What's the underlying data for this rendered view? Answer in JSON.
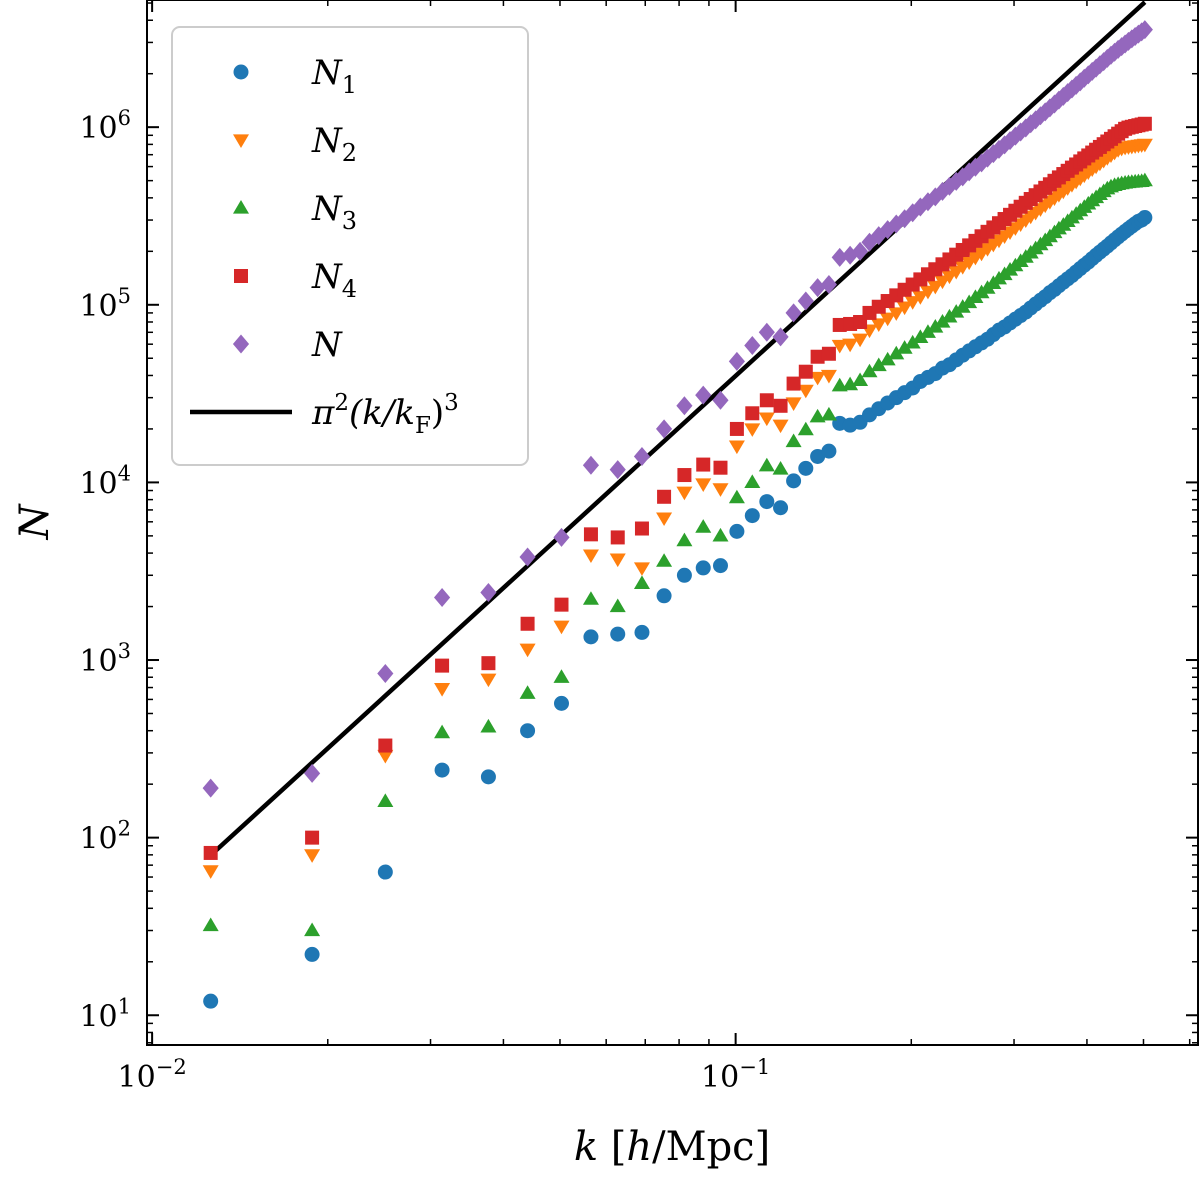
{
  "chart_data": {
    "type": "scatter",
    "title": "",
    "xlabel": "k [h/Mpc]",
    "ylabel": "N",
    "xscale": "log",
    "yscale": "log",
    "xlim": [
      0.0098,
      0.62
    ],
    "ylim": [
      6.8,
      5200000
    ],
    "x_major_ticks": [
      {
        "value": 0.01,
        "base": "10",
        "exp": "−2"
      },
      {
        "value": 0.1,
        "base": "10",
        "exp": "−1"
      }
    ],
    "y_major_ticks": [
      {
        "value": 10,
        "base": "10",
        "exp": "1"
      },
      {
        "value": 100,
        "base": "10",
        "exp": "2"
      },
      {
        "value": 1000,
        "base": "10",
        "exp": "3"
      },
      {
        "value": 10000,
        "base": "10",
        "exp": "4"
      },
      {
        "value": 100000,
        "base": "10",
        "exp": "5"
      },
      {
        "value": 1000000,
        "base": "10",
        "exp": "6"
      }
    ],
    "legend_position": "top-left",
    "x": [
      0.0126,
      0.0188,
      0.0251,
      0.0314,
      0.0377,
      0.044,
      0.0503,
      0.0565,
      0.0628,
      0.0691,
      0.0754,
      0.0817,
      0.088,
      0.0942,
      0.1005,
      0.1068,
      0.1131,
      0.1194,
      0.1257,
      0.1319,
      0.1382,
      0.1445,
      0.1508,
      0.1571,
      0.1634,
      0.1696,
      0.1759,
      0.1822,
      0.1885,
      0.1948,
      0.2011,
      0.2073,
      0.2136,
      0.2199,
      0.2262,
      0.2325,
      0.2388,
      0.245,
      0.2513,
      0.2576,
      0.2639,
      0.2702,
      0.2765,
      0.2827,
      0.289,
      0.2953,
      0.3016,
      0.3079,
      0.3142,
      0.3204,
      0.3267,
      0.333,
      0.3393,
      0.3456,
      0.3519,
      0.3581,
      0.3644,
      0.3707,
      0.377,
      0.3833,
      0.3896,
      0.3958,
      0.4021,
      0.4084,
      0.4147,
      0.421,
      0.4273,
      0.4335,
      0.4398,
      0.4461,
      0.4524,
      0.4587,
      0.465,
      0.4712,
      0.4775,
      0.4838,
      0.4901,
      0.4964,
      0.5027
    ],
    "series": [
      {
        "name": "N1",
        "label_base": "N",
        "label_sub": "1",
        "marker": "circle",
        "color": "#1f77b4",
        "values": [
          12,
          22,
          64,
          240,
          220,
          400,
          570,
          1350,
          1400,
          1430,
          2300,
          3000,
          3300,
          3400,
          5300,
          6500,
          7800,
          7200,
          10200,
          12000,
          14000,
          15000,
          21500,
          21000,
          21800,
          24000,
          26000,
          28000,
          30000,
          32000,
          34000,
          37000,
          39000,
          41000,
          44000,
          46000,
          49000,
          52000,
          55000,
          58000,
          61000,
          64000,
          68000,
          72000,
          75000,
          79000,
          83000,
          87000,
          91000,
          96000,
          101000,
          106000,
          111000,
          117000,
          122000,
          128000,
          134000,
          140000,
          146000,
          153000,
          160000,
          167000,
          174000,
          182000,
          190000,
          198000,
          206000,
          214000,
          223000,
          232000,
          241000,
          250000,
          259000,
          268000,
          277000,
          286000,
          295000,
          300000,
          310000
        ]
      },
      {
        "name": "N2",
        "label_base": "N",
        "label_sub": "2",
        "marker": "triangle-down",
        "color": "#ff7f0e",
        "values": [
          65,
          80,
          290,
          690,
          780,
          1150,
          1550,
          3900,
          3700,
          3300,
          6300,
          8800,
          9800,
          9200,
          16000,
          20000,
          23000,
          21000,
          28000,
          33000,
          39000,
          40000,
          59000,
          60000,
          64000,
          72000,
          78000,
          84000,
          90000,
          97000,
          104000,
          111000,
          119000,
          127000,
          136000,
          145000,
          154000,
          164000,
          174000,
          185000,
          195000,
          207000,
          219000,
          231000,
          244000,
          257000,
          271000,
          285000,
          300000,
          315000,
          331000,
          347000,
          364000,
          381000,
          399000,
          417000,
          436000,
          455000,
          475000,
          495000,
          516000,
          537000,
          559000,
          581000,
          603000,
          626000,
          649000,
          673000,
          697000,
          721000,
          746000,
          760000,
          770000,
          775000,
          780000,
          785000,
          790000,
          795000,
          800000
        ]
      },
      {
        "name": "N3",
        "label_base": "N",
        "label_sub": "3",
        "marker": "triangle-up",
        "color": "#2ca02c",
        "values": [
          32,
          30,
          160,
          390,
          420,
          650,
          800,
          2200,
          2000,
          2700,
          3600,
          4700,
          5600,
          5000,
          8200,
          10000,
          12400,
          11900,
          17000,
          19800,
          23400,
          24000,
          35000,
          35500,
          37500,
          42000,
          45500,
          49000,
          53000,
          57000,
          61000,
          65500,
          70000,
          75000,
          80000,
          85500,
          91000,
          97000,
          103000,
          110000,
          117000,
          124000,
          132000,
          140000,
          148000,
          157000,
          166000,
          175500,
          185500,
          196000,
          207000,
          218000,
          230000,
          242000,
          255000,
          268000,
          281000,
          295000,
          309000,
          324000,
          339000,
          354000,
          370000,
          386000,
          402000,
          418000,
          434000,
          450000,
          462000,
          470000,
          476000,
          481000,
          485000,
          488000,
          490000,
          492000,
          494000,
          495000,
          500000
        ]
      },
      {
        "name": "N4",
        "label_base": "N",
        "label_sub": "4",
        "marker": "square",
        "color": "#d62728",
        "values": [
          82,
          100,
          330,
          930,
          960,
          1600,
          2050,
          5100,
          4900,
          5500,
          8300,
          11000,
          12600,
          12100,
          20000,
          24500,
          29000,
          27000,
          36000,
          42000,
          51000,
          53000,
          77000,
          78000,
          80000,
          90000,
          97500,
          105000,
          113000,
          121500,
          130000,
          139000,
          148500,
          158500,
          169000,
          180000,
          191500,
          203500,
          216000,
          229000,
          243000,
          257500,
          272500,
          288000,
          304000,
          321000,
          338500,
          356500,
          375000,
          394000,
          414000,
          434500,
          455500,
          477000,
          499000,
          521500,
          544500,
          568000,
          592000,
          616500,
          641500,
          667000,
          693000,
          719500,
          746500,
          774000,
          802000,
          830500,
          859500,
          889000,
          919000,
          949000,
          979000,
          995000,
          1005000,
          1015000,
          1025000,
          1035000,
          1045000
        ]
      },
      {
        "name": "N",
        "label_base": "N",
        "label_sub": "",
        "marker": "diamond",
        "color": "#9467bd",
        "values": [
          190,
          230,
          840,
          2250,
          2400,
          3800,
          4900,
          12500,
          11800,
          14000,
          20000,
          27000,
          31000,
          29000,
          48000,
          59000,
          70000,
          66000,
          90000,
          105000,
          125000,
          130000,
          185000,
          190000,
          200000,
          225000,
          245000,
          265000,
          285000,
          305000,
          330000,
          355000,
          380000,
          405000,
          435000,
          465000,
          495000,
          525000,
          560000,
          595000,
          630000,
          670000,
          710000,
          750000,
          795000,
          840000,
          890000,
          940000,
          990000,
          1045000,
          1100000,
          1160000,
          1220000,
          1285000,
          1350000,
          1420000,
          1490000,
          1565000,
          1640000,
          1720000,
          1800000,
          1885000,
          1970000,
          2060000,
          2150000,
          2245000,
          2340000,
          2440000,
          2540000,
          2640000,
          2740000,
          2840000,
          2940000,
          3040000,
          3140000,
          3240000,
          3340000,
          3440000,
          3540000
        ]
      }
    ],
    "reference_line": {
      "name": "pi2_k_over_kF_cubed",
      "label_prefix": "π",
      "label_exp1": "2",
      "label_mid": "(k/k",
      "label_sub": "F",
      "label_close": ")",
      "label_exp2": "3",
      "color": "#000000",
      "formula": "pi^2 (k/k_F)^3",
      "k_F": 0.006283,
      "x_range": [
        0.0126,
        0.5027
      ]
    }
  }
}
